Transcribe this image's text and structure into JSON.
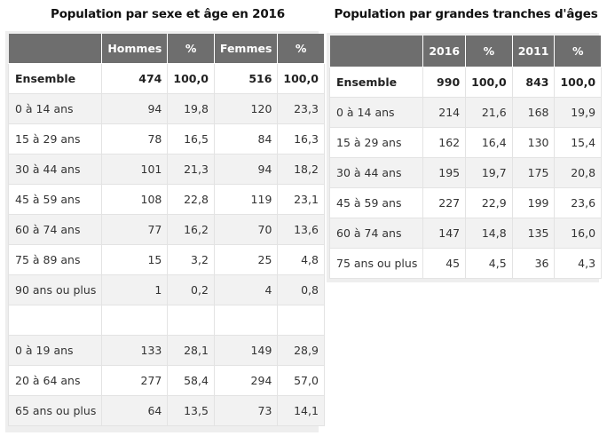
{
  "left": {
    "title": "Population par sexe et âge en 2016",
    "headers": [
      "",
      "Hommes",
      "%",
      "Femmes",
      "%"
    ],
    "rows": [
      [
        "Ensemble",
        "474",
        "100,0",
        "516",
        "100,0"
      ],
      [
        "0 à 14 ans",
        "94",
        "19,8",
        "120",
        "23,3"
      ],
      [
        "15 à 29 ans",
        "78",
        "16,5",
        "84",
        "16,3"
      ],
      [
        "30 à 44 ans",
        "101",
        "21,3",
        "94",
        "18,2"
      ],
      [
        "45 à 59 ans",
        "108",
        "22,8",
        "119",
        "23,1"
      ],
      [
        "60 à 74 ans",
        "77",
        "16,2",
        "70",
        "13,6"
      ],
      [
        "75 à 89 ans",
        "15",
        "3,2",
        "25",
        "4,8"
      ],
      [
        "90 ans ou plus",
        "1",
        "0,2",
        "4",
        "0,8"
      ],
      [
        "",
        "",
        "",
        "",
        ""
      ],
      [
        "0 à 19 ans",
        "133",
        "28,1",
        "149",
        "28,9"
      ],
      [
        "20 à 64 ans",
        "277",
        "58,4",
        "294",
        "57,0"
      ],
      [
        "65 ans ou plus",
        "64",
        "13,5",
        "73",
        "14,1"
      ]
    ]
  },
  "right": {
    "title": "Population par grandes tranches d'âges",
    "headers": [
      "",
      "2016",
      "%",
      "2011",
      "%"
    ],
    "rows": [
      [
        "Ensemble",
        "990",
        "100,0",
        "843",
        "100,0"
      ],
      [
        "0 à 14 ans",
        "214",
        "21,6",
        "168",
        "19,9"
      ],
      [
        "15 à 29 ans",
        "162",
        "16,4",
        "130",
        "15,4"
      ],
      [
        "30 à 44 ans",
        "195",
        "19,7",
        "175",
        "20,8"
      ],
      [
        "45 à 59 ans",
        "227",
        "22,9",
        "199",
        "23,6"
      ],
      [
        "60 à 74 ans",
        "147",
        "14,8",
        "135",
        "16,0"
      ],
      [
        "75 ans ou plus",
        "45",
        "4,5",
        "36",
        "4,3"
      ]
    ]
  },
  "colors": {
    "header_bg": "#6e6e6e",
    "row_alt": "#f2f2f2",
    "frame": "#eeeeee"
  }
}
